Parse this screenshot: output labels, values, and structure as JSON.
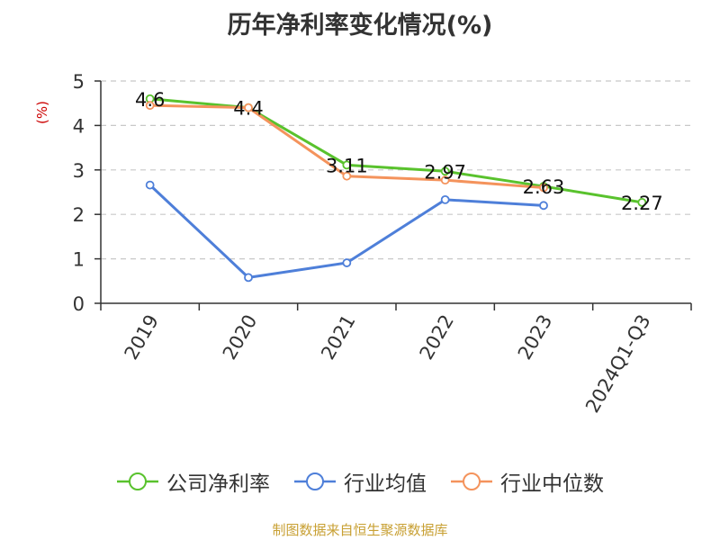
{
  "chart_data": {
    "type": "line",
    "title": "历年净利率变化情况(%)",
    "ylabel": "(%)",
    "xlabel": "",
    "categories": [
      "2019",
      "2020",
      "2021",
      "2022",
      "2023",
      "2024Q1-Q3"
    ],
    "ylim": [
      0,
      5
    ],
    "yticks": [
      0,
      1,
      2,
      3,
      4,
      5
    ],
    "grid": true,
    "legend_position": "bottom",
    "series": [
      {
        "name": "公司净利率",
        "color": "#59c22d",
        "values": [
          4.6,
          4.4,
          3.11,
          2.97,
          2.63,
          2.27
        ],
        "labels": [
          "4.6",
          "4.4",
          "3.11",
          "2.97",
          "2.63",
          "2.27"
        ]
      },
      {
        "name": "行业均值",
        "color": "#4e7fd9",
        "values": [
          2.66,
          0.58,
          0.91,
          2.33,
          2.2,
          null
        ]
      },
      {
        "name": "行业中位数",
        "color": "#f4935c",
        "values": [
          4.45,
          4.4,
          2.86,
          2.77,
          2.6,
          null
        ]
      }
    ]
  },
  "source_note": "制图数据来自恒生聚源数据库"
}
